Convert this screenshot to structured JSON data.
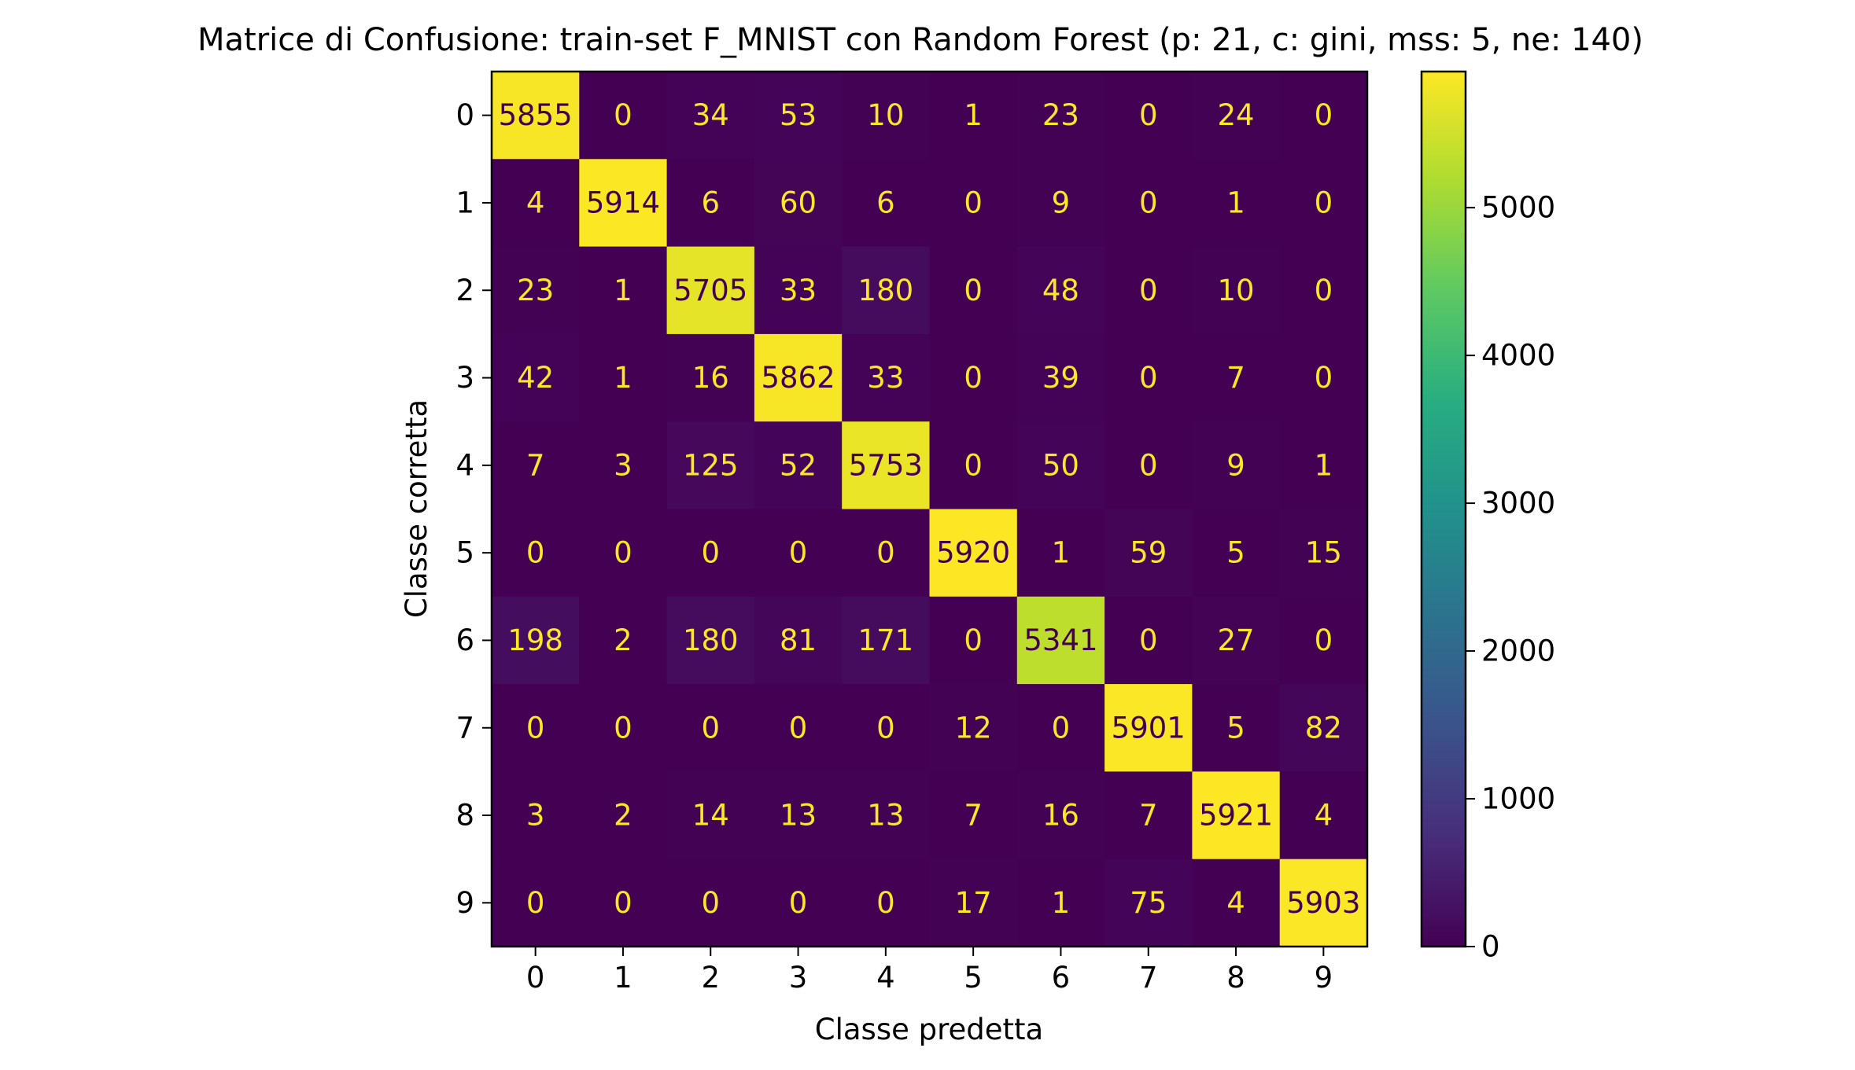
{
  "chart_data": {
    "type": "heatmap",
    "title": "Matrice di Confusione: train-set F_MNIST con Random Forest (p: 21, c: gini, mss: 5, ne: 140)",
    "xlabel": "Classe predetta",
    "ylabel": "Classe corretta",
    "x_categories": [
      "0",
      "1",
      "2",
      "3",
      "4",
      "5",
      "6",
      "7",
      "8",
      "9"
    ],
    "y_categories": [
      "0",
      "1",
      "2",
      "3",
      "4",
      "5",
      "6",
      "7",
      "8",
      "9"
    ],
    "values": [
      [
        5855,
        0,
        34,
        53,
        10,
        1,
        23,
        0,
        24,
        0
      ],
      [
        4,
        5914,
        6,
        60,
        6,
        0,
        9,
        0,
        1,
        0
      ],
      [
        23,
        1,
        5705,
        33,
        180,
        0,
        48,
        0,
        10,
        0
      ],
      [
        42,
        1,
        16,
        5862,
        33,
        0,
        39,
        0,
        7,
        0
      ],
      [
        7,
        3,
        125,
        52,
        5753,
        0,
        50,
        0,
        9,
        1
      ],
      [
        0,
        0,
        0,
        0,
        0,
        5920,
        1,
        59,
        5,
        15
      ],
      [
        198,
        2,
        180,
        81,
        171,
        0,
        5341,
        0,
        27,
        0
      ],
      [
        0,
        0,
        0,
        0,
        0,
        12,
        0,
        5901,
        5,
        82
      ],
      [
        3,
        2,
        14,
        13,
        13,
        7,
        16,
        7,
        5921,
        4
      ],
      [
        0,
        0,
        0,
        0,
        0,
        17,
        1,
        75,
        4,
        5903
      ]
    ],
    "colormap": "viridis",
    "color_range": [
      0,
      5921
    ],
    "colorbar_ticks": [
      "0",
      "1000",
      "2000",
      "3000",
      "4000",
      "5000"
    ],
    "colorbar_tick_values": [
      0,
      1000,
      2000,
      3000,
      4000,
      5000
    ],
    "label_color_low": "#fde725",
    "label_color_high": "#440154"
  }
}
